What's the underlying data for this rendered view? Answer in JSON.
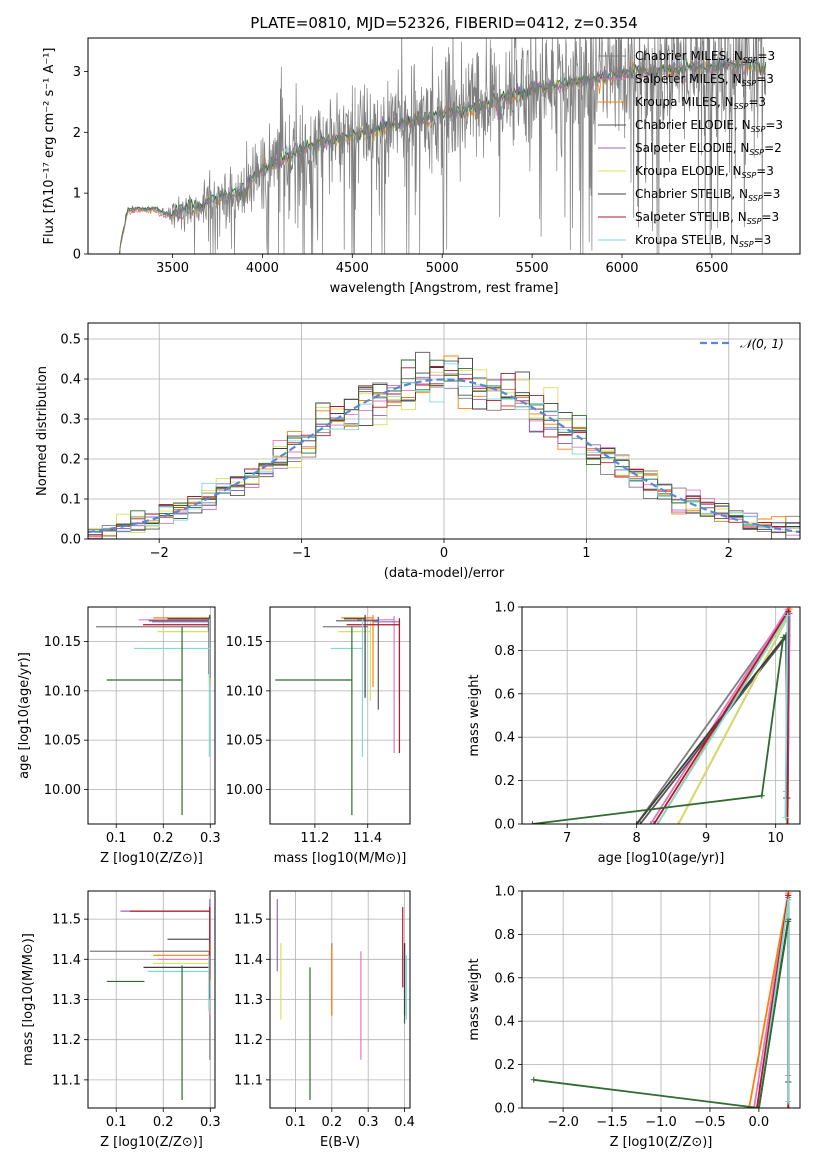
{
  "figure": {
    "title": "PLATE=0810, MJD=52326, FIBERID=0412, z=0.354"
  },
  "colors": {
    "series": [
      "#7f7f7f",
      "#e377c2",
      "#ff7f0e",
      "#555555",
      "#9467bd",
      "#d8e05a",
      "#3d3d3d",
      "#b2182b",
      "#7ed9d9",
      "#2e6b2e"
    ],
    "normal": "#5b87d6",
    "grid": "#b0b0b0"
  },
  "chart_data": [
    {
      "id": "spectrum",
      "type": "line",
      "title": "PLATE=0810, MJD=52326, FIBERID=0412, z=0.354",
      "xlabel": "wavelength [Angstrom, rest frame]",
      "ylabel": "Flux [fλ10⁻¹⁷ erg cm⁻² s⁻¹ A⁻¹]",
      "xlim": [
        3030,
        6990
      ],
      "ylim": [
        0,
        3.55
      ],
      "xticks": [
        3500,
        4000,
        4500,
        5000,
        5500,
        6000,
        6500
      ],
      "yticks": [
        0,
        1,
        2,
        3
      ],
      "grid": false,
      "legend_position": "top-right",
      "legend": [
        {
          "label": "Chabrier MILES, N",
          "sub": "SSP",
          "suffix": "=3"
        },
        {
          "label": "Salpeter MILES, N",
          "sub": "SSP",
          "suffix": "=3"
        },
        {
          "label": "Kroupa MILES, N",
          "sub": "SSP",
          "suffix": "=3"
        },
        {
          "label": "Chabrier ELODIE, N",
          "sub": "SSP",
          "suffix": "=3"
        },
        {
          "label": "Salpeter ELODIE, N",
          "sub": "SSP",
          "suffix": "=2"
        },
        {
          "label": "Kroupa ELODIE, N",
          "sub": "SSP",
          "suffix": "=3"
        },
        {
          "label": "Chabrier STELIB, N",
          "sub": "SSP",
          "suffix": "=3"
        },
        {
          "label": "Salpeter STELIB, N",
          "sub": "SSP",
          "suffix": "=3"
        },
        {
          "label": "Kroupa STELIB, N",
          "sub": "SSP",
          "suffix": "=3"
        }
      ],
      "data_observed": {
        "x": [
          3200,
          3250,
          3300,
          3350,
          3400,
          3450,
          3500,
          3550,
          3600,
          3650,
          3700,
          3750,
          3800,
          3850,
          3900,
          3950,
          4000,
          4100,
          4200,
          4300,
          4400,
          4500,
          4600,
          4700,
          4800,
          4900,
          5000,
          5100,
          5200,
          5300,
          5400,
          5500,
          5600,
          5700,
          5800,
          5900,
          6000,
          6100,
          6200,
          6300,
          6400,
          6500,
          6600,
          6700,
          6800
        ],
        "y": [
          0.0,
          0.7,
          0.74,
          0.72,
          0.75,
          0.68,
          0.6,
          0.7,
          0.8,
          0.72,
          0.9,
          0.95,
          1.0,
          0.95,
          1.05,
          1.2,
          1.4,
          1.6,
          1.7,
          1.8,
          1.9,
          2.0,
          2.05,
          2.1,
          2.2,
          2.25,
          2.35,
          2.4,
          2.45,
          2.55,
          2.7,
          2.75,
          2.8,
          2.85,
          2.9,
          2.95,
          3.0,
          3.05,
          3.05,
          3.1,
          3.1,
          3.1,
          3.15,
          3.15,
          3.1
        ],
        "noise_amp": [
          0,
          0.03,
          0.03,
          0.03,
          0.04,
          0.05,
          0.25,
          0.35,
          0.35,
          0.35,
          0.35,
          0.35,
          0.35,
          0.45,
          0.5,
          0.55,
          0.6,
          0.7,
          0.7,
          0.75,
          0.75,
          0.8,
          0.8,
          0.8,
          0.85,
          0.85,
          0.85,
          0.85,
          0.85,
          0.9,
          0.9,
          0.9,
          0.95,
          0.95,
          1.0,
          1.0,
          1.0,
          1.0,
          1.0,
          1.0,
          1.05,
          1.05,
          1.1,
          1.1,
          1.1
        ]
      },
      "data_models": {
        "x": [
          3200,
          3250,
          3300,
          3350,
          3400,
          3450,
          3500,
          3550,
          3600,
          3650,
          3700,
          3750,
          3800,
          3850,
          3900,
          3950,
          4000,
          4100,
          4200,
          4300,
          4400,
          4500,
          4600,
          4700,
          4800,
          4900,
          5000,
          5100,
          5200,
          5300,
          5400,
          5500,
          5600,
          5700,
          5800,
          5900,
          6000,
          6100,
          6200,
          6300,
          6400,
          6500,
          6600,
          6700,
          6800
        ],
        "y": [
          0.0,
          0.7,
          0.74,
          0.72,
          0.73,
          0.66,
          0.62,
          0.7,
          0.78,
          0.72,
          0.86,
          0.92,
          0.95,
          0.98,
          1.02,
          1.22,
          1.38,
          1.55,
          1.68,
          1.78,
          1.88,
          1.95,
          2.02,
          2.1,
          2.15,
          2.22,
          2.3,
          2.35,
          2.4,
          2.5,
          2.62,
          2.7,
          2.75,
          2.8,
          2.85,
          2.9,
          2.95,
          3.0,
          3.0,
          3.05,
          3.05,
          3.05,
          3.1,
          3.1,
          3.05
        ]
      }
    },
    {
      "id": "residuals",
      "type": "histogram",
      "xlabel": "(data-model)/error",
      "ylabel": "Normed distribution",
      "xlim": [
        -2.5,
        2.5
      ],
      "ylim": [
        0,
        0.54
      ],
      "xticks": [
        -2,
        -1,
        0,
        1,
        2
      ],
      "yticks": [
        0.0,
        0.1,
        0.2,
        0.3,
        0.4,
        0.5
      ],
      "grid": true,
      "legend_position": "top-right",
      "normal_label": "𝒩(0, 1)",
      "bin_width": 0.1,
      "bin_start": -2.5
    },
    {
      "id": "age-vs-Z",
      "type": "errorbar",
      "xlabel": "Z [log10(Z/Z⊙)]",
      "ylabel": "age  [log10(age/yr)]",
      "xlim": [
        0.04,
        0.31
      ],
      "ylim": [
        9.965,
        10.185
      ],
      "xticks": [
        0.1,
        0.2,
        0.3
      ],
      "yticks": [
        10.0,
        10.05,
        10.1,
        10.15
      ],
      "grid": true,
      "points": [
        {
          "x": 0.297,
          "xerr_lo": 0.24,
          "xerr_hi": 0.003,
          "y": 10.165,
          "yerr_lo": 0.0,
          "yerr_hi": 0.0
        },
        {
          "x": 0.298,
          "xerr_lo": 0.15,
          "xerr_hi": 0.002,
          "y": 10.172,
          "yerr_lo": 0.06,
          "yerr_hi": 0.004
        },
        {
          "x": 0.299,
          "xerr_lo": 0.12,
          "xerr_hi": 0.001,
          "y": 10.174,
          "yerr_lo": 0.07,
          "yerr_hi": 0.003
        },
        {
          "x": 0.299,
          "xerr_lo": 0.13,
          "xerr_hi": 0.001,
          "y": 10.171,
          "yerr_lo": 0.02,
          "yerr_hi": 0.004
        },
        {
          "x": 0.296,
          "xerr_lo": 0.12,
          "xerr_hi": 0.004,
          "y": 10.17,
          "yerr_lo": 0.01,
          "yerr_hi": 0.004
        },
        {
          "x": 0.298,
          "xerr_lo": 0.11,
          "xerr_hi": 0.002,
          "y": 10.16,
          "yerr_lo": 0.05,
          "yerr_hi": 0.01
        },
        {
          "x": 0.299,
          "xerr_lo": 0.09,
          "xerr_hi": 0.001,
          "y": 10.173,
          "yerr_lo": 0.06,
          "yerr_hi": 0.004
        },
        {
          "x": 0.297,
          "xerr_lo": 0.14,
          "xerr_hi": 0.003,
          "y": 10.167,
          "yerr_lo": 0.05,
          "yerr_hi": 0.006
        },
        {
          "x": 0.298,
          "xerr_lo": 0.16,
          "xerr_hi": 0.002,
          "y": 10.143,
          "yerr_lo": 0.11,
          "yerr_hi": 0.03
        },
        {
          "x": 0.24,
          "xerr_lo": 0.16,
          "xerr_hi": 0.0,
          "y": 10.111,
          "yerr_lo": 0.137,
          "yerr_hi": 0.054
        }
      ]
    },
    {
      "id": "age-vs-mass",
      "type": "errorbar",
      "xlabel": "mass [log10(M/M⊙)]",
      "xlim": [
        11.03,
        11.56
      ],
      "ylim": [
        9.965,
        10.185
      ],
      "xticks": [
        11.2,
        11.4
      ],
      "yticks": [
        10.0,
        10.05,
        10.1,
        10.15
      ],
      "grid": true,
      "points": [
        {
          "x": 11.4,
          "xerr_lo": 0.17,
          "y": 10.165,
          "yerr_lo": 0.0,
          "yerr_hi": 0.0
        },
        {
          "x": 11.5,
          "xerr_lo": 0.14,
          "y": 10.172,
          "yerr_lo": 0.135,
          "yerr_hi": 0.004
        },
        {
          "x": 11.42,
          "xerr_lo": 0.12,
          "y": 10.174,
          "yerr_lo": 0.07,
          "yerr_hi": 0.003
        },
        {
          "x": 11.44,
          "xerr_lo": 0.16,
          "y": 10.171,
          "yerr_lo": 0.09,
          "yerr_hi": 0.004
        },
        {
          "x": 11.52,
          "xerr_lo": 0.1,
          "y": 10.17,
          "yerr_lo": 0.08,
          "yerr_hi": 0.004
        },
        {
          "x": 11.41,
          "xerr_lo": 0.12,
          "y": 10.16,
          "yerr_lo": 0.07,
          "yerr_hi": 0.01
        },
        {
          "x": 11.39,
          "xerr_lo": 0.08,
          "y": 10.173,
          "yerr_lo": 0.08,
          "yerr_hi": 0.004
        },
        {
          "x": 11.52,
          "xerr_lo": 0.2,
          "y": 10.167,
          "yerr_lo": 0.13,
          "yerr_hi": 0.006
        },
        {
          "x": 11.38,
          "xerr_lo": 0.12,
          "y": 10.143,
          "yerr_lo": 0.11,
          "yerr_hi": 0.03
        },
        {
          "x": 11.34,
          "xerr_lo": 0.29,
          "y": 10.111,
          "yerr_lo": 0.137,
          "yerr_hi": 0.054
        }
      ]
    },
    {
      "id": "weight-vs-age",
      "type": "line",
      "xlabel": "age  [log10(age/yr)]",
      "ylabel": "mass weight",
      "xlim": [
        6.35,
        10.35
      ],
      "ylim": [
        0,
        1.0
      ],
      "xticks": [
        7,
        8,
        9,
        10
      ],
      "yticks": [
        0.0,
        0.2,
        0.4,
        0.6,
        0.8,
        1.0
      ],
      "grid": true,
      "series": [
        {
          "x": [
            10.17,
            10.18,
            8.0
          ],
          "y": [
            0.0,
            0.98,
            0.0
          ]
        },
        {
          "x": [
            10.15,
            10.17,
            8.2
          ],
          "y": [
            0.15,
            0.99,
            0.0
          ]
        },
        {
          "x": [
            10.17,
            10.2,
            8.3
          ],
          "y": [
            0.0,
            0.99,
            0.0
          ]
        },
        {
          "x": [
            10.15,
            10.17,
            8.05
          ],
          "y": [
            0.12,
            0.87,
            0.0
          ]
        },
        {
          "x": [
            10.17,
            10.2,
            8.6
          ],
          "y": [
            0.0,
            0.97,
            0.0
          ]
        },
        {
          "x": [
            10.16,
            10.18,
            8.6
          ],
          "y": [
            0.0,
            0.96,
            0.0
          ]
        },
        {
          "x": [
            10.17,
            10.15,
            8.0
          ],
          "y": [
            0.12,
            0.87,
            0.0
          ]
        },
        {
          "x": [
            10.17,
            10.18,
            8.25
          ],
          "y": [
            0.0,
            0.98,
            0.0
          ]
        },
        {
          "x": [
            10.14,
            10.17,
            8.3
          ],
          "y": [
            0.03,
            0.96,
            0.0
          ]
        },
        {
          "x": [
            6.5,
            9.8,
            10.11
          ],
          "y": [
            0.0,
            0.13,
            0.86
          ]
        }
      ]
    },
    {
      "id": "mass-vs-Z",
      "type": "errorbar",
      "xlabel": "Z [log10(Z/Z⊙)]",
      "ylabel": "mass [log10(M/M⊙)]",
      "xlim": [
        0.04,
        0.31
      ],
      "ylim": [
        11.03,
        11.57
      ],
      "xticks": [
        0.1,
        0.2,
        0.3
      ],
      "yticks": [
        11.1,
        11.2,
        11.3,
        11.4,
        11.5
      ],
      "grid": true,
      "points": [
        {
          "x": 0.299,
          "xerr_lo": 0.255,
          "y": 11.42,
          "yerr_lo": 0.27,
          "yerr_hi": 0.12
        },
        {
          "x": 0.299,
          "xerr_lo": 0.11,
          "y": 11.4,
          "yerr_lo": 0.14,
          "yerr_hi": 0.04
        },
        {
          "x": 0.299,
          "xerr_lo": 0.12,
          "y": 11.41,
          "yerr_lo": 0.08,
          "yerr_hi": 0.03
        },
        {
          "x": 0.299,
          "xerr_lo": 0.09,
          "y": 11.45,
          "yerr_lo": 0.05,
          "yerr_hi": 0.07
        },
        {
          "x": 0.299,
          "xerr_lo": 0.19,
          "y": 11.52,
          "yerr_lo": 0.14,
          "yerr_hi": 0.03
        },
        {
          "x": 0.298,
          "xerr_lo": 0.12,
          "y": 11.39,
          "yerr_lo": 0.12,
          "yerr_hi": 0.05
        },
        {
          "x": 0.298,
          "xerr_lo": 0.14,
          "y": 11.38,
          "yerr_lo": 0.08,
          "yerr_hi": 0.04
        },
        {
          "x": 0.299,
          "xerr_lo": 0.17,
          "y": 11.52,
          "yerr_lo": 0.17,
          "yerr_hi": 0.01
        },
        {
          "x": 0.297,
          "xerr_lo": 0.13,
          "y": 11.37,
          "yerr_lo": 0.1,
          "yerr_hi": 0.04
        },
        {
          "x": 0.24,
          "xerr_lo": 0.16,
          "xerr_hi": -0.08,
          "y": 11.345,
          "yerr_lo": 0.295,
          "yerr_hi": 0.04
        }
      ]
    },
    {
      "id": "mass-vs-EBV",
      "type": "errorbar",
      "xlabel": "E(B-V)",
      "xlim": [
        0.03,
        0.415
      ],
      "ylim": [
        11.03,
        11.57
      ],
      "xticks": [
        0.1,
        0.2,
        0.3,
        0.4
      ],
      "yticks": [
        11.1,
        11.2,
        11.3,
        11.4,
        11.5
      ],
      "grid": true,
      "points": [
        {
          "x": 0.2,
          "y": 11.36,
          "yerr_lo": 0.1,
          "yerr_hi": 0.08
        },
        {
          "x": 0.28,
          "y": 11.28,
          "yerr_lo": 0.13,
          "yerr_hi": 0.14
        },
        {
          "x": 0.2,
          "y": 11.34,
          "yerr_lo": 0.08,
          "yerr_hi": 0.09
        },
        {
          "x": 0.4,
          "y": 11.36,
          "yerr_lo": 0.12,
          "yerr_hi": 0.08
        },
        {
          "x": 0.05,
          "y": 11.45,
          "yerr_lo": 0.08,
          "yerr_hi": 0.1
        },
        {
          "x": 0.06,
          "y": 11.35,
          "yerr_lo": 0.1,
          "yerr_hi": 0.09
        },
        {
          "x": 0.4,
          "y": 11.34,
          "yerr_lo": 0.08,
          "yerr_hi": 0.1
        },
        {
          "x": 0.395,
          "y": 11.43,
          "yerr_lo": 0.1,
          "yerr_hi": 0.1
        },
        {
          "x": 0.405,
          "y": 11.33,
          "yerr_lo": 0.08,
          "yerr_hi": 0.08
        },
        {
          "x": 0.14,
          "y": 11.22,
          "yerr_lo": 0.17,
          "yerr_hi": 0.16
        }
      ]
    },
    {
      "id": "weight-vs-Z",
      "type": "line",
      "xlabel": "Z [log10(Z/Z⊙)]",
      "ylabel": "mass weight",
      "xlim": [
        -2.42,
        0.42
      ],
      "ylim": [
        0,
        1.0
      ],
      "xticks": [
        -2.0,
        -1.5,
        -1.0,
        -0.5,
        0.0
      ],
      "yticks": [
        0.0,
        0.2,
        0.4,
        0.6,
        0.8,
        1.0
      ],
      "grid": true,
      "series": [
        {
          "x": [
            0.3,
            0.3,
            0.0
          ],
          "y": [
            0.0,
            0.98,
            0.0
          ]
        },
        {
          "x": [
            0.3,
            0.3,
            -0.05
          ],
          "y": [
            0.15,
            0.99,
            0.0
          ]
        },
        {
          "x": [
            0.3,
            0.3,
            -0.1
          ],
          "y": [
            0.0,
            0.99,
            0.0
          ]
        },
        {
          "x": [
            0.3,
            0.3,
            0.0
          ],
          "y": [
            0.12,
            0.87,
            0.0
          ]
        },
        {
          "x": [
            0.3,
            0.3,
            0.0
          ],
          "y": [
            0.0,
            0.97,
            0.0
          ]
        },
        {
          "x": [
            0.3,
            0.3,
            0.0
          ],
          "y": [
            0.0,
            0.96,
            0.0
          ]
        },
        {
          "x": [
            0.3,
            0.3,
            0.0
          ],
          "y": [
            0.12,
            0.87,
            0.0
          ]
        },
        {
          "x": [
            0.3,
            0.3,
            -0.02
          ],
          "y": [
            0.0,
            0.98,
            0.0
          ]
        },
        {
          "x": [
            0.3,
            0.3,
            0.0
          ],
          "y": [
            0.03,
            0.96,
            0.0
          ]
        },
        {
          "x": [
            -2.3,
            0.0,
            0.3
          ],
          "y": [
            0.13,
            0.0,
            0.86
          ]
        }
      ]
    }
  ]
}
